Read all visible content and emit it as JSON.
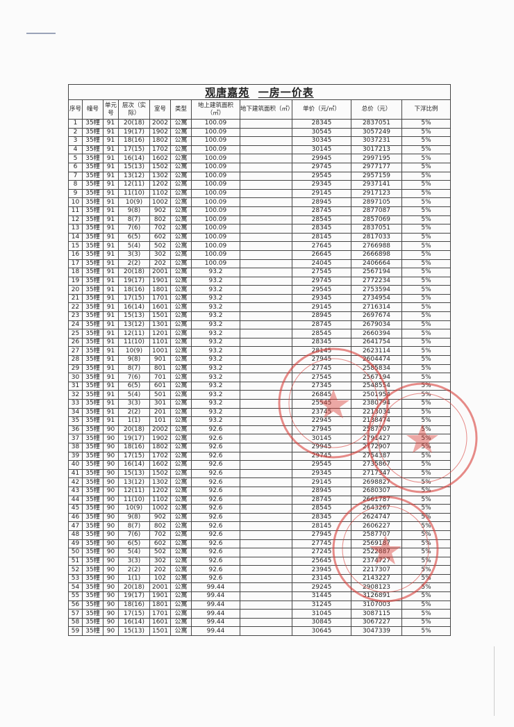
{
  "document": {
    "title_project": "观唐嘉苑",
    "title_main": "一房一价表",
    "headers": [
      "序号",
      "幢号",
      "单元号",
      "层次（实际）",
      "室号",
      "类型",
      "地上建筑面积（㎡）",
      "地下建筑面积（㎡）",
      "单价（元/㎡）",
      "总价（元）",
      "下浮比例"
    ],
    "stamp_color": "#d9403a",
    "rows": [
      [
        "1",
        "35幢",
        "91",
        "20(18)",
        "2002",
        "公寓",
        "100.09",
        "",
        "28345",
        "2837051",
        "5%"
      ],
      [
        "2",
        "35幢",
        "91",
        "19(17)",
        "1902",
        "公寓",
        "100.09",
        "",
        "30545",
        "3057249",
        "5%"
      ],
      [
        "3",
        "35幢",
        "91",
        "18(16)",
        "1802",
        "公寓",
        "100.09",
        "",
        "30345",
        "3037231",
        "5%"
      ],
      [
        "4",
        "35幢",
        "91",
        "17(15)",
        "1702",
        "公寓",
        "100.09",
        "",
        "30145",
        "3017213",
        "5%"
      ],
      [
        "5",
        "35幢",
        "91",
        "16(14)",
        "1602",
        "公寓",
        "100.09",
        "",
        "29945",
        "2997195",
        "5%"
      ],
      [
        "6",
        "35幢",
        "91",
        "15(13)",
        "1502",
        "公寓",
        "100.09",
        "",
        "29745",
        "2977177",
        "5%"
      ],
      [
        "7",
        "35幢",
        "91",
        "13(12)",
        "1302",
        "公寓",
        "100.09",
        "",
        "29545",
        "2957159",
        "5%"
      ],
      [
        "8",
        "35幢",
        "91",
        "12(11)",
        "1202",
        "公寓",
        "100.09",
        "",
        "29345",
        "2937141",
        "5%"
      ],
      [
        "9",
        "35幢",
        "91",
        "11(10)",
        "1102",
        "公寓",
        "100.09",
        "",
        "29145",
        "2917123",
        "5%"
      ],
      [
        "10",
        "35幢",
        "91",
        "10(9)",
        "1002",
        "公寓",
        "100.09",
        "",
        "28945",
        "2897105",
        "5%"
      ],
      [
        "11",
        "35幢",
        "91",
        "9(8)",
        "902",
        "公寓",
        "100.09",
        "",
        "28745",
        "2877087",
        "5%"
      ],
      [
        "12",
        "35幢",
        "91",
        "8(7)",
        "802",
        "公寓",
        "100.09",
        "",
        "28545",
        "2857069",
        "5%"
      ],
      [
        "13",
        "35幢",
        "91",
        "7(6)",
        "702",
        "公寓",
        "100.09",
        "",
        "28345",
        "2837051",
        "5%"
      ],
      [
        "14",
        "35幢",
        "91",
        "6(5)",
        "602",
        "公寓",
        "100.09",
        "",
        "28145",
        "2817033",
        "5%"
      ],
      [
        "15",
        "35幢",
        "91",
        "5(4)",
        "502",
        "公寓",
        "100.09",
        "",
        "27645",
        "2766988",
        "5%"
      ],
      [
        "16",
        "35幢",
        "91",
        "3(3)",
        "302",
        "公寓",
        "100.09",
        "",
        "26645",
        "2666898",
        "5%"
      ],
      [
        "17",
        "35幢",
        "91",
        "2(2)",
        "202",
        "公寓",
        "100.09",
        "",
        "24045",
        "2406664",
        "5%"
      ],
      [
        "18",
        "35幢",
        "91",
        "20(18)",
        "2001",
        "公寓",
        "93.2",
        "",
        "27545",
        "2567194",
        "5%"
      ],
      [
        "19",
        "35幢",
        "91",
        "19(17)",
        "1901",
        "公寓",
        "93.2",
        "",
        "29745",
        "2772234",
        "5%"
      ],
      [
        "20",
        "35幢",
        "91",
        "18(16)",
        "1801",
        "公寓",
        "93.2",
        "",
        "29545",
        "2753594",
        "5%"
      ],
      [
        "21",
        "35幢",
        "91",
        "17(15)",
        "1701",
        "公寓",
        "93.2",
        "",
        "29345",
        "2734954",
        "5%"
      ],
      [
        "22",
        "35幢",
        "91",
        "16(14)",
        "1601",
        "公寓",
        "93.2",
        "",
        "29145",
        "2716314",
        "5%"
      ],
      [
        "23",
        "35幢",
        "91",
        "15(13)",
        "1501",
        "公寓",
        "93.2",
        "",
        "28945",
        "2697674",
        "5%"
      ],
      [
        "24",
        "35幢",
        "91",
        "13(12)",
        "1301",
        "公寓",
        "93.2",
        "",
        "28745",
        "2679034",
        "5%"
      ],
      [
        "25",
        "35幢",
        "91",
        "12(11)",
        "1201",
        "公寓",
        "93.2",
        "",
        "28545",
        "2660394",
        "5%"
      ],
      [
        "26",
        "35幢",
        "91",
        "11(10)",
        "1101",
        "公寓",
        "93.2",
        "",
        "28345",
        "2641754",
        "5%"
      ],
      [
        "27",
        "35幢",
        "91",
        "10(9)",
        "1001",
        "公寓",
        "93.2",
        "",
        "28145",
        "2623114",
        "5%"
      ],
      [
        "28",
        "35幢",
        "91",
        "9(8)",
        "901",
        "公寓",
        "93.2",
        "",
        "27945",
        "2604474",
        "5%"
      ],
      [
        "29",
        "35幢",
        "91",
        "8(7)",
        "801",
        "公寓",
        "93.2",
        "",
        "27745",
        "2585834",
        "5%"
      ],
      [
        "30",
        "35幢",
        "91",
        "7(6)",
        "701",
        "公寓",
        "93.2",
        "",
        "27545",
        "2567194",
        "5%"
      ],
      [
        "31",
        "35幢",
        "91",
        "6(5)",
        "601",
        "公寓",
        "93.2",
        "",
        "27345",
        "2548554",
        "5%"
      ],
      [
        "32",
        "35幢",
        "91",
        "5(4)",
        "501",
        "公寓",
        "93.2",
        "",
        "26845",
        "2501954",
        "5%"
      ],
      [
        "33",
        "35幢",
        "91",
        "3(3)",
        "301",
        "公寓",
        "93.2",
        "",
        "25545",
        "2380794",
        "5%"
      ],
      [
        "34",
        "35幢",
        "91",
        "2(2)",
        "201",
        "公寓",
        "93.2",
        "",
        "23745",
        "2213034",
        "5%"
      ],
      [
        "35",
        "35幢",
        "91",
        "1(1)",
        "101",
        "公寓",
        "93.2",
        "",
        "22945",
        "2138474",
        "5%"
      ],
      [
        "36",
        "35幢",
        "90",
        "20(18)",
        "2002",
        "公寓",
        "92.6",
        "",
        "27945",
        "2587707",
        "5%"
      ],
      [
        "37",
        "35幢",
        "90",
        "19(17)",
        "1902",
        "公寓",
        "92.6",
        "",
        "30145",
        "2791427",
        "5%"
      ],
      [
        "38",
        "35幢",
        "90",
        "18(16)",
        "1802",
        "公寓",
        "92.6",
        "",
        "29945",
        "2772907",
        "5%"
      ],
      [
        "39",
        "35幢",
        "90",
        "17(15)",
        "1702",
        "公寓",
        "92.6",
        "",
        "29745",
        "2754387",
        "5%"
      ],
      [
        "40",
        "35幢",
        "90",
        "16(14)",
        "1602",
        "公寓",
        "92.6",
        "",
        "29545",
        "2735867",
        "5%"
      ],
      [
        "41",
        "35幢",
        "90",
        "15(13)",
        "1502",
        "公寓",
        "92.6",
        "",
        "29345",
        "2717347",
        "5%"
      ],
      [
        "42",
        "35幢",
        "90",
        "13(12)",
        "1302",
        "公寓",
        "92.6",
        "",
        "29145",
        "2698827",
        "5%"
      ],
      [
        "43",
        "35幢",
        "90",
        "12(11)",
        "1202",
        "公寓",
        "92.6",
        "",
        "28945",
        "2680307",
        "5%"
      ],
      [
        "44",
        "35幢",
        "90",
        "11(10)",
        "1102",
        "公寓",
        "92.6",
        "",
        "28745",
        "2661787",
        "5%"
      ],
      [
        "45",
        "35幢",
        "90",
        "10(9)",
        "1002",
        "公寓",
        "92.6",
        "",
        "28545",
        "2643267",
        "5%"
      ],
      [
        "46",
        "35幢",
        "90",
        "9(8)",
        "902",
        "公寓",
        "92.6",
        "",
        "28345",
        "2624747",
        "5%"
      ],
      [
        "47",
        "35幢",
        "90",
        "8(7)",
        "802",
        "公寓",
        "92.6",
        "",
        "28145",
        "2606227",
        "5%"
      ],
      [
        "48",
        "35幢",
        "90",
        "7(6)",
        "702",
        "公寓",
        "92.6",
        "",
        "27945",
        "2587707",
        "5%"
      ],
      [
        "49",
        "35幢",
        "90",
        "6(5)",
        "602",
        "公寓",
        "92.6",
        "",
        "27745",
        "2569187",
        "5%"
      ],
      [
        "50",
        "35幢",
        "90",
        "5(4)",
        "502",
        "公寓",
        "92.6",
        "",
        "27245",
        "2522887",
        "5%"
      ],
      [
        "51",
        "35幢",
        "90",
        "3(3)",
        "302",
        "公寓",
        "92.6",
        "",
        "25645",
        "2374727",
        "5%"
      ],
      [
        "52",
        "35幢",
        "90",
        "2(2)",
        "202",
        "公寓",
        "92.6",
        "",
        "23945",
        "2217307",
        "5%"
      ],
      [
        "53",
        "35幢",
        "90",
        "1(1)",
        "102",
        "公寓",
        "92.6",
        "",
        "23145",
        "2143227",
        "5%"
      ],
      [
        "54",
        "35幢",
        "90",
        "20(18)",
        "2001",
        "公寓",
        "99.44",
        "",
        "29245",
        "2908123",
        "5%"
      ],
      [
        "55",
        "35幢",
        "90",
        "19(17)",
        "1901",
        "公寓",
        "99.44",
        "",
        "31445",
        "3126891",
        "5%"
      ],
      [
        "56",
        "35幢",
        "90",
        "18(16)",
        "1801",
        "公寓",
        "99.44",
        "",
        "31245",
        "3107003",
        "5%"
      ],
      [
        "57",
        "35幢",
        "90",
        "17(15)",
        "1701",
        "公寓",
        "99.44",
        "",
        "31045",
        "3087115",
        "5%"
      ],
      [
        "58",
        "35幢",
        "90",
        "16(14)",
        "1601",
        "公寓",
        "99.44",
        "",
        "30845",
        "3067227",
        "5%"
      ],
      [
        "59",
        "35幢",
        "90",
        "15(13)",
        "1501",
        "公寓",
        "99.44",
        "",
        "30645",
        "3047339",
        "5%"
      ]
    ]
  }
}
